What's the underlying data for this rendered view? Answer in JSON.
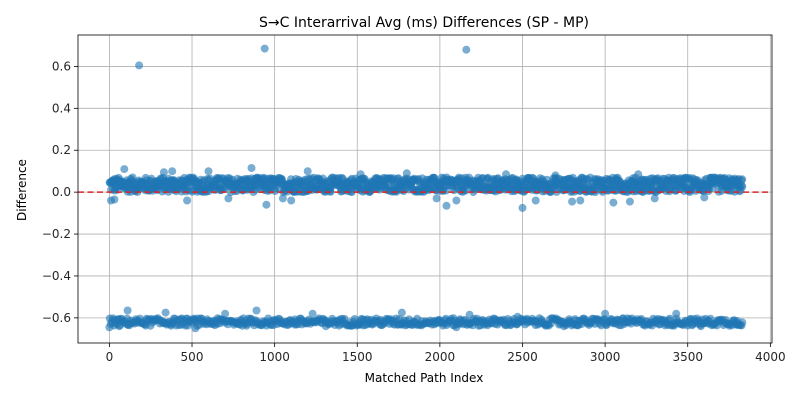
{
  "chart_data": {
    "type": "scatter",
    "title": "S→C Interarrival Avg (ms) Differences (SP - MP)",
    "xlabel": "Matched Path Index",
    "ylabel": "Difference",
    "xlim": [
      -190,
      4010
    ],
    "ylim": [
      -0.72,
      0.75
    ],
    "x_ticks": [
      0,
      500,
      1000,
      1500,
      2000,
      2500,
      3000,
      3500,
      4000
    ],
    "y_ticks": [
      -0.6,
      -0.4,
      -0.2,
      0.0,
      0.2,
      0.4,
      0.6
    ],
    "y_tick_labels": [
      "−0.6",
      "−0.4",
      "−0.2",
      "0.0",
      "0.2",
      "0.4",
      "0.6"
    ],
    "grid": true,
    "marker_color": "#1f77b4",
    "marker_alpha": 0.6,
    "reference_line": {
      "y": 0.0,
      "style": "dashed",
      "color": "#d62728"
    },
    "series": [
      {
        "points": [
          [
            180,
            0.605
          ],
          [
            940,
            0.685
          ],
          [
            2160,
            0.68
          ],
          [
            2500,
            -0.075
          ],
          [
            2040,
            -0.065
          ],
          [
            950,
            -0.06
          ],
          [
            10,
            -0.04
          ],
          [
            30,
            -0.035
          ],
          [
            470,
            -0.04
          ],
          [
            1100,
            -0.04
          ],
          [
            1050,
            -0.03
          ],
          [
            2100,
            -0.04
          ],
          [
            2580,
            -0.04
          ],
          [
            2800,
            -0.045
          ],
          [
            3050,
            -0.05
          ],
          [
            3150,
            -0.045
          ],
          [
            3300,
            -0.03
          ],
          [
            1980,
            -0.03
          ],
          [
            720,
            -0.03
          ],
          [
            2850,
            -0.04
          ],
          [
            3600,
            -0.025
          ],
          [
            90,
            0.11
          ],
          [
            860,
            0.115
          ],
          [
            1200,
            0.1
          ],
          [
            600,
            0.1
          ],
          [
            380,
            0.1
          ],
          [
            330,
            0.095
          ],
          [
            1520,
            0.085
          ],
          [
            2400,
            0.085
          ],
          [
            3200,
            0.085
          ],
          [
            1800,
            0.09
          ],
          [
            2700,
            0.08
          ],
          [
            110,
            -0.565
          ],
          [
            890,
            -0.565
          ],
          [
            1770,
            -0.575
          ],
          [
            340,
            -0.575
          ],
          [
            700,
            -0.58
          ],
          [
            1230,
            -0.58
          ],
          [
            2180,
            -0.585
          ],
          [
            2470,
            -0.595
          ],
          [
            3430,
            -0.58
          ],
          [
            3000,
            -0.58
          ],
          [
            0,
            -0.645
          ],
          [
            60,
            -0.64
          ],
          [
            520,
            -0.65
          ],
          [
            1310,
            -0.64
          ],
          [
            2100,
            -0.645
          ],
          [
            2750,
            -0.64
          ],
          [
            3580,
            -0.64
          ],
          [
            3800,
            -0.615
          ]
        ]
      }
    ],
    "bands": [
      {
        "x_range": [
          0,
          3830
        ],
        "y_center": 0.035,
        "y_spread": 0.035
      },
      {
        "x_range": [
          0,
          3830
        ],
        "y_center": -0.62,
        "y_spread": 0.018
      }
    ]
  }
}
